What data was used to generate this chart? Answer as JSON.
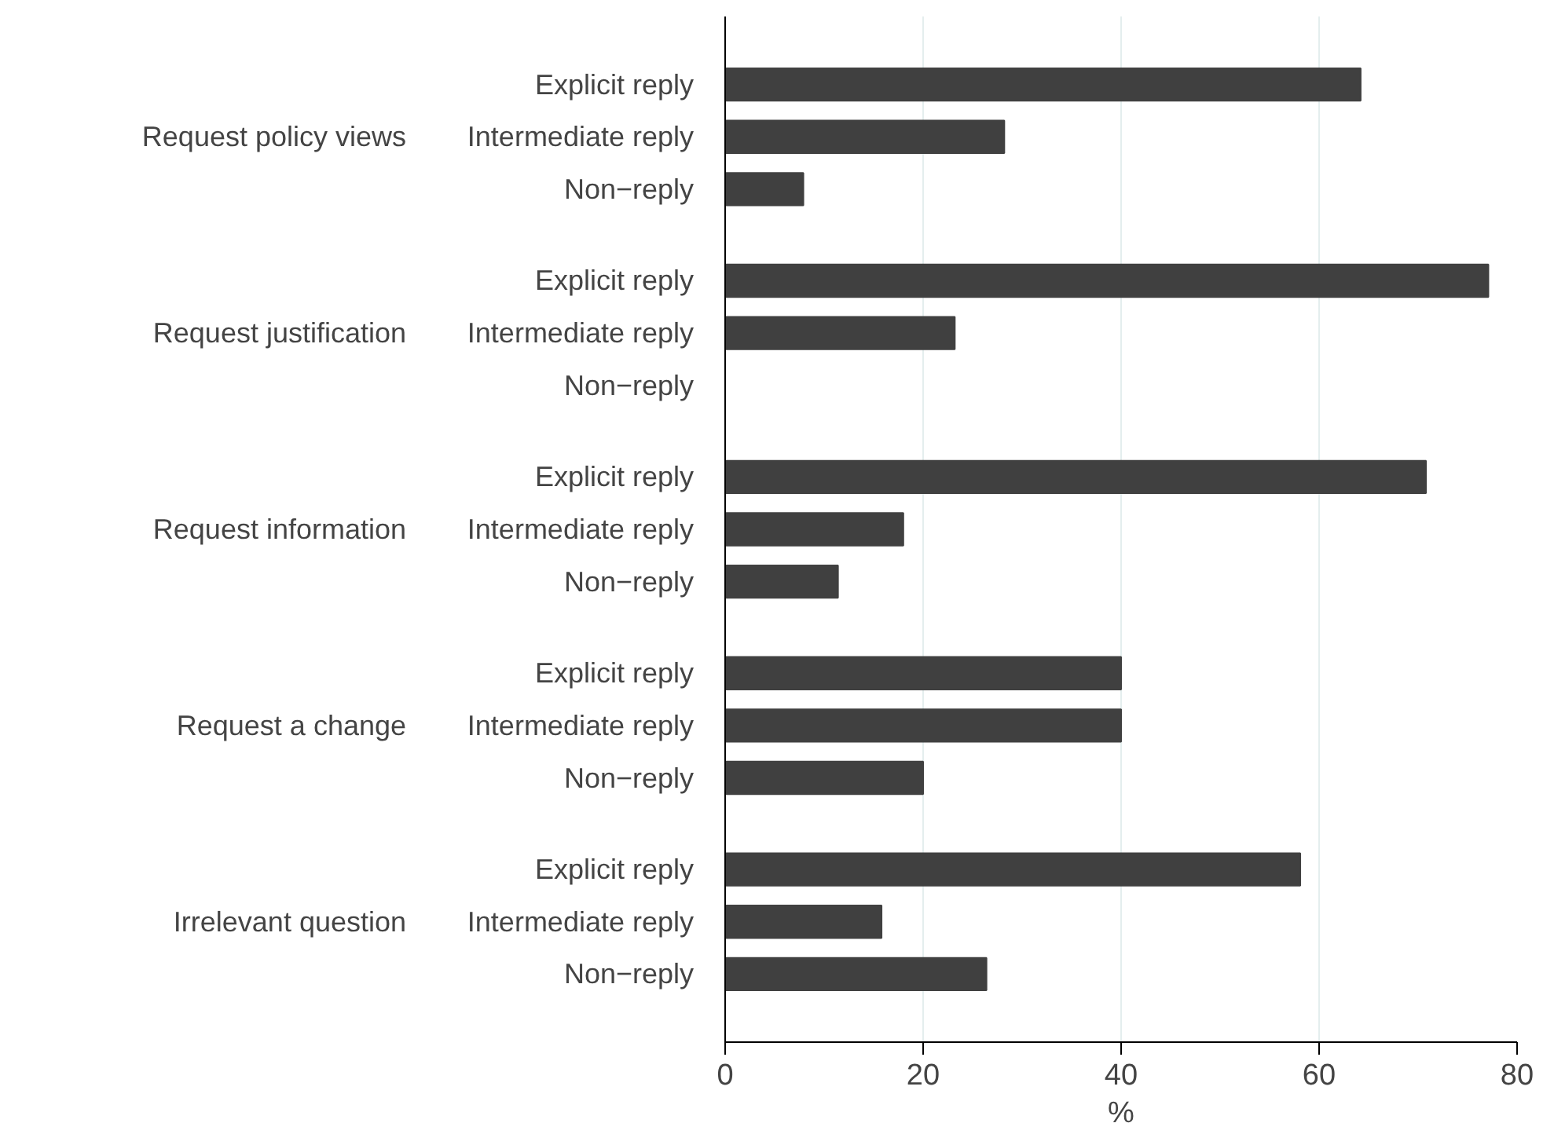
{
  "chart_data": {
    "type": "bar",
    "orientation": "horizontal",
    "xlabel": "%",
    "categories": [
      "Explicit reply",
      "Intermediate reply",
      "Non−reply",
      "Explicit reply",
      "Intermediate reply",
      "Non−reply",
      "Explicit reply",
      "Intermediate reply",
      "Non−reply",
      "Explicit reply",
      "Intermediate reply",
      "Non−reply",
      "Explicit reply",
      "Intermediate reply",
      "Non−reply"
    ],
    "values": [
      64.2,
      28.2,
      7.9,
      77.1,
      23.2,
      0,
      70.8,
      18.0,
      11.4,
      40,
      40,
      20,
      58.1,
      15.8,
      26.4
    ],
    "color": "#404040",
    "xlim": [
      0,
      80
    ],
    "xticks": [
      0,
      20,
      40,
      60,
      80
    ],
    "grid": "x",
    "annotations": [
      "Request policy views",
      "Request justification",
      "Request information",
      "Request a change",
      "Irrelevant question"
    ]
  }
}
